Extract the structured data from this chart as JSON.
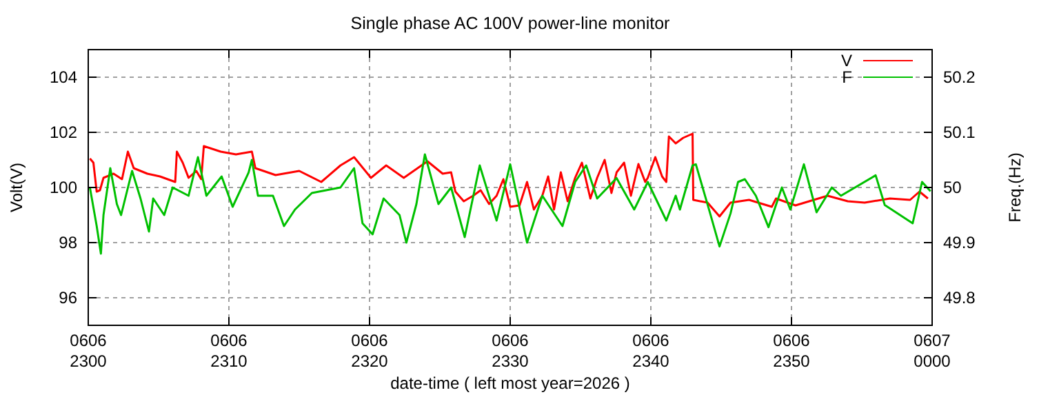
{
  "chart_data": {
    "type": "line",
    "title": "Single phase AC 100V power-line monitor",
    "xlabel": "date-time ( left most year=2026 )",
    "ylabel": "Volt(V)",
    "y2label": "Freq.(Hz)",
    "xlim": [
      "2026-06-06T23:00",
      "2026-06-07T00:00"
    ],
    "xticks": [
      {
        "value": "2026-06-06T23:00",
        "label": "0606\n2300"
      },
      {
        "value": "2026-06-06T23:10",
        "label": "0606\n2310"
      },
      {
        "value": "2026-06-06T23:20",
        "label": "0606\n2320"
      },
      {
        "value": "2026-06-06T23:30",
        "label": "0606\n2330"
      },
      {
        "value": "2026-06-06T23:40",
        "label": "0606\n2340"
      },
      {
        "value": "2026-06-06T23:50",
        "label": "0606\n2350"
      },
      {
        "value": "2026-06-07T00:00",
        "label": "0607\n0000"
      }
    ],
    "ylim": [
      95,
      105
    ],
    "yticks": [
      96,
      98,
      100,
      102,
      104
    ],
    "y2lim": [
      49.75,
      50.25
    ],
    "y2ticks": [
      49.8,
      49.9,
      50,
      50.1,
      50.2
    ],
    "grid": true,
    "legend": "top right",
    "marker": "none",
    "line_style": "solid",
    "series": [
      {
        "name": "V",
        "color": "#ff0000",
        "x": [
          "2026-06-06T23:00:07",
          "2026-06-06T23:00:22",
          "2026-06-06T23:00:36",
          "2026-06-06T23:00:50",
          "2026-06-06T23:01:05",
          "2026-06-06T23:01:48",
          "2026-06-06T23:02:24",
          "2026-06-06T23:02:49",
          "2026-06-06T23:03:14",
          "2026-06-06T23:04:12",
          "2026-06-06T23:05:06",
          "2026-06-06T23:06:11",
          "2026-06-06T23:06:18",
          "2026-06-06T23:06:43",
          "2026-06-06T23:07:08",
          "2026-06-06T23:07:41",
          "2026-06-06T23:08:02",
          "2026-06-06T23:08:13",
          "2026-06-06T23:09:25",
          "2026-06-06T23:10:30",
          "2026-06-06T23:11:38",
          "2026-06-06T23:11:53",
          "2026-06-06T23:13:19",
          "2026-06-06T23:15:00",
          "2026-06-06T23:16:34",
          "2026-06-06T23:17:56",
          "2026-06-06T23:18:54",
          "2026-06-06T23:20:06",
          "2026-06-06T23:21:11",
          "2026-06-06T23:22:26",
          "2026-06-06T23:24:07",
          "2026-06-06T23:25:12",
          "2026-06-06T23:25:48",
          "2026-06-06T23:26:06",
          "2026-06-06T23:26:42",
          "2026-06-06T23:27:22",
          "2026-06-06T23:27:54",
          "2026-06-06T23:28:30",
          "2026-06-06T23:29:02",
          "2026-06-06T23:29:31",
          "2026-06-06T23:30:00",
          "2026-06-06T23:30:40",
          "2026-06-06T23:31:12",
          "2026-06-06T23:31:41",
          "2026-06-06T23:32:17",
          "2026-06-06T23:32:42",
          "2026-06-06T23:33:07",
          "2026-06-06T23:33:36",
          "2026-06-06T23:34:05",
          "2026-06-06T23:34:37",
          "2026-06-06T23:35:06",
          "2026-06-06T23:35:42",
          "2026-06-06T23:36:11",
          "2026-06-06T23:36:43",
          "2026-06-06T23:37:12",
          "2026-06-06T23:37:34",
          "2026-06-06T23:38:06",
          "2026-06-06T23:38:35",
          "2026-06-06T23:39:07",
          "2026-06-06T23:39:36",
          "2026-06-06T23:39:47",
          "2026-06-06T23:40:19",
          "2026-06-06T23:40:48",
          "2026-06-06T23:41:06",
          "2026-06-06T23:41:17",
          "2026-06-06T23:41:46",
          "2026-06-06T23:42:18",
          "2026-06-06T23:42:58",
          "2026-06-06T23:43:01",
          "2026-06-06T23:44:02",
          "2026-06-06T23:44:53",
          "2026-06-06T23:45:40",
          "2026-06-06T23:46:59",
          "2026-06-06T23:48:36",
          "2026-06-06T23:48:54",
          "2026-06-06T23:50:17",
          "2026-06-06T23:52:34",
          "2026-06-06T23:54:00",
          "2026-06-06T23:55:12",
          "2026-06-06T23:57:00",
          "2026-06-06T23:58:26",
          "2026-06-06T23:59:06",
          "2026-06-06T23:59:42"
        ],
        "values": [
          101.05,
          100.9,
          99.85,
          99.9,
          100.35,
          100.5,
          100.3,
          101.3,
          100.7,
          100.5,
          100.4,
          100.2,
          101.3,
          100.9,
          100.35,
          100.6,
          100.3,
          101.5,
          101.3,
          101.2,
          101.3,
          100.7,
          100.45,
          100.6,
          100.2,
          100.8,
          101.1,
          100.35,
          100.8,
          100.35,
          100.95,
          100.5,
          100.55,
          99.85,
          99.5,
          99.7,
          99.9,
          99.4,
          99.7,
          100.3,
          99.3,
          99.35,
          100.2,
          99.2,
          99.7,
          100.4,
          99.2,
          100.55,
          99.5,
          100.35,
          100.9,
          99.6,
          100.35,
          101.0,
          99.8,
          100.55,
          100.9,
          99.7,
          100.85,
          100.2,
          100.35,
          101.1,
          100.4,
          100.2,
          101.85,
          101.6,
          101.8,
          101.95,
          99.55,
          99.45,
          98.95,
          99.45,
          99.55,
          99.3,
          99.6,
          99.35,
          99.7,
          99.5,
          99.45,
          99.6,
          99.55,
          99.85,
          99.6
        ]
      },
      {
        "name": "F",
        "color": "#00c000",
        "axis": "y2",
        "x": [
          "2026-06-06T23:00:07",
          "2026-06-06T23:00:36",
          "2026-06-06T23:00:54",
          "2026-06-06T23:01:05",
          "2026-06-06T23:01:34",
          "2026-06-06T23:02:02",
          "2026-06-06T23:02:20",
          "2026-06-06T23:03:07",
          "2026-06-06T23:03:43",
          "2026-06-06T23:04:19",
          "2026-06-06T23:04:37",
          "2026-06-06T23:05:24",
          "2026-06-06T23:06:00",
          "2026-06-06T23:07:08",
          "2026-06-06T23:07:48",
          "2026-06-06T23:08:24",
          "2026-06-06T23:09:29",
          "2026-06-06T23:10:16",
          "2026-06-06T23:11:24",
          "2026-06-06T23:11:38",
          "2026-06-06T23:12:04",
          "2026-06-06T23:13:08",
          "2026-06-06T23:13:55",
          "2026-06-06T23:14:42",
          "2026-06-06T23:15:54",
          "2026-06-06T23:17:56",
          "2026-06-06T23:18:54",
          "2026-06-06T23:19:30",
          "2026-06-06T23:20:13",
          "2026-06-06T23:21:00",
          "2026-06-06T23:22:08",
          "2026-06-06T23:22:37",
          "2026-06-06T23:23:20",
          "2026-06-06T23:23:56",
          "2026-06-06T23:24:54",
          "2026-06-06T23:25:48",
          "2026-06-06T23:26:46",
          "2026-06-06T23:27:50",
          "2026-06-06T23:29:02",
          "2026-06-06T23:30:00",
          "2026-06-06T23:31:12",
          "2026-06-06T23:32:17",
          "2026-06-06T23:33:43",
          "2026-06-06T23:34:37",
          "2026-06-06T23:35:24",
          "2026-06-06T23:36:11",
          "2026-06-06T23:37:34",
          "2026-06-06T23:38:49",
          "2026-06-06T23:39:47",
          "2026-06-06T23:41:06",
          "2026-06-06T23:41:46",
          "2026-06-06T23:42:04",
          "2026-06-06T23:42:58",
          "2026-06-06T23:43:12",
          "2026-06-06T23:44:13",
          "2026-06-06T23:44:53",
          "2026-06-06T23:45:40",
          "2026-06-06T23:46:12",
          "2026-06-06T23:46:41",
          "2026-06-06T23:47:28",
          "2026-06-06T23:48:22",
          "2026-06-06T23:49:19",
          "2026-06-06T23:49:55",
          "2026-06-06T23:50:53",
          "2026-06-06T23:51:47",
          "2026-06-06T23:52:52",
          "2026-06-06T23:53:31",
          "2026-06-06T23:55:59",
          "2026-06-06T23:56:38",
          "2026-06-06T23:58:37",
          "2026-06-06T23:59:17",
          "2026-06-06T23:59:53"
        ],
        "values": [
          50.0,
          49.93,
          49.88,
          49.95,
          50.035,
          49.97,
          49.95,
          50.03,
          49.98,
          49.92,
          49.98,
          49.95,
          50.0,
          49.985,
          50.055,
          49.985,
          50.02,
          49.965,
          50.027,
          50.05,
          49.985,
          49.985,
          49.93,
          49.96,
          49.99,
          50.0,
          50.035,
          49.935,
          49.915,
          49.98,
          49.95,
          49.9,
          49.97,
          50.06,
          49.97,
          50.0,
          49.91,
          50.04,
          49.94,
          50.042,
          49.9,
          49.985,
          49.93,
          50.01,
          50.04,
          49.98,
          50.017,
          49.96,
          50.01,
          49.94,
          49.985,
          49.96,
          50.04,
          50.042,
          49.953,
          49.893,
          49.953,
          50.01,
          50.015,
          49.985,
          49.928,
          50.0,
          49.96,
          50.042,
          49.955,
          50.0,
          49.985,
          50.022,
          49.968,
          49.935,
          50.01,
          49.993
        ]
      }
    ]
  }
}
